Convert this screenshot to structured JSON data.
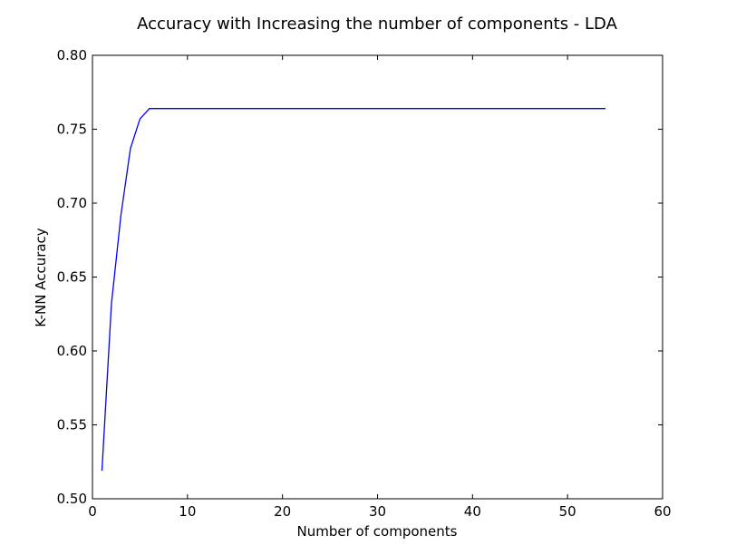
{
  "chart_data": {
    "type": "line",
    "title": "Accuracy with Increasing the number of components - LDA",
    "xlabel": "Number of components",
    "ylabel": "K-NN Accuracy",
    "xlim": [
      0,
      60
    ],
    "ylim": [
      0.5,
      0.8
    ],
    "x_ticks": [
      "0",
      "10",
      "20",
      "30",
      "40",
      "50",
      "60"
    ],
    "y_ticks": [
      "0.50",
      "0.55",
      "0.60",
      "0.65",
      "0.70",
      "0.75",
      "0.80"
    ],
    "grid": false,
    "series": [
      {
        "color": "#0000ff",
        "x": [
          1,
          2,
          3,
          4,
          5,
          6,
          7,
          8,
          9,
          10,
          11,
          12,
          13,
          14,
          15,
          16,
          17,
          18,
          19,
          20,
          21,
          22,
          23,
          24,
          25,
          26,
          27,
          28,
          29,
          30,
          31,
          32,
          33,
          34,
          35,
          36,
          37,
          38,
          39,
          40,
          41,
          42,
          43,
          44,
          45,
          46,
          47,
          48,
          49,
          50,
          51,
          52,
          53,
          54
        ],
        "y": [
          0.519,
          0.632,
          0.692,
          0.737,
          0.757,
          0.764,
          0.764,
          0.764,
          0.764,
          0.764,
          0.764,
          0.764,
          0.764,
          0.764,
          0.764,
          0.764,
          0.764,
          0.764,
          0.764,
          0.764,
          0.764,
          0.764,
          0.764,
          0.764,
          0.764,
          0.764,
          0.764,
          0.764,
          0.764,
          0.764,
          0.764,
          0.764,
          0.764,
          0.764,
          0.764,
          0.764,
          0.764,
          0.764,
          0.764,
          0.764,
          0.764,
          0.764,
          0.764,
          0.764,
          0.764,
          0.764,
          0.764,
          0.764,
          0.764,
          0.764,
          0.764,
          0.764,
          0.764,
          0.764
        ]
      }
    ]
  }
}
